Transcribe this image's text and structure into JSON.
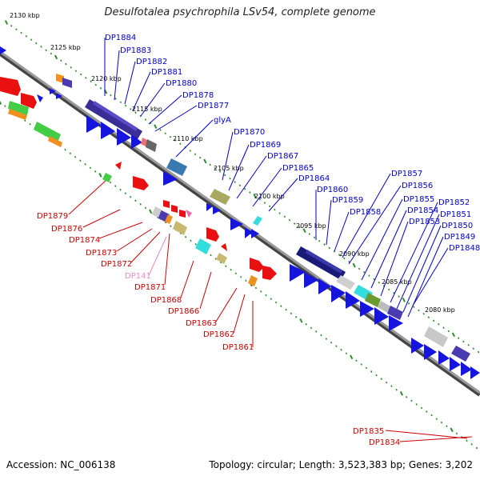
{
  "title": "Desulfotalea psychrophila LSv54, complete genome",
  "footer": {
    "accession": "Accession: NC_006138",
    "summary": "Topology: circular; Length: 3,523,383 bp; Genes: 3,202"
  },
  "colors": {
    "backbone": "#7a7a7a",
    "ticks": "#2e8b2e",
    "forward_gene": "#0000ee",
    "reverse_gene": "#ee0000",
    "forward_label": "#0000cc",
    "reverse_label": "#cc0000",
    "pink_label": "#ee88cc"
  },
  "kbp_labels": [
    {
      "text": "2130 kbp"
    },
    {
      "text": "2125 kbp"
    },
    {
      "text": "2120 kbp"
    },
    {
      "text": "2115 kbp"
    },
    {
      "text": "2110 kbp"
    },
    {
      "text": "2105 kbp"
    },
    {
      "text": "2100 kbp"
    },
    {
      "text": "2095 kbp"
    },
    {
      "text": "2090 kbp"
    },
    {
      "text": "2085 kbp"
    },
    {
      "text": "2080 kbp"
    }
  ],
  "forward_labels": [
    {
      "text": "DP1884"
    },
    {
      "text": "DP1883"
    },
    {
      "text": "DP1882"
    },
    {
      "text": "DP1881"
    },
    {
      "text": "DP1880"
    },
    {
      "text": "DP1878"
    },
    {
      "text": "DP1877"
    },
    {
      "text": "glyA"
    },
    {
      "text": "DP1870"
    },
    {
      "text": "DP1869"
    },
    {
      "text": "DP1867"
    },
    {
      "text": "DP1865"
    },
    {
      "text": "DP1864"
    },
    {
      "text": "DP1860"
    },
    {
      "text": "DP1859"
    },
    {
      "text": "DP1858"
    },
    {
      "text": "DP1857"
    },
    {
      "text": "DP1856"
    },
    {
      "text": "DP1855"
    },
    {
      "text": "DP1854"
    },
    {
      "text": "DP1853"
    },
    {
      "text": "DP1852"
    },
    {
      "text": "DP1851"
    },
    {
      "text": "DP1850"
    },
    {
      "text": "DP1849"
    },
    {
      "text": "DP1848"
    }
  ],
  "reverse_labels": [
    {
      "text": "DP1879"
    },
    {
      "text": "DP1876"
    },
    {
      "text": "DP1874"
    },
    {
      "text": "DP1873"
    },
    {
      "text": "DP1872"
    },
    {
      "text": "DP1871"
    },
    {
      "text": "DP1868"
    },
    {
      "text": "DP1866"
    },
    {
      "text": "DP1863"
    },
    {
      "text": "DP1862"
    },
    {
      "text": "DP1861"
    },
    {
      "text": "DP1835"
    },
    {
      "text": "DP1834"
    }
  ],
  "pink_label": {
    "text": "DP141"
  }
}
